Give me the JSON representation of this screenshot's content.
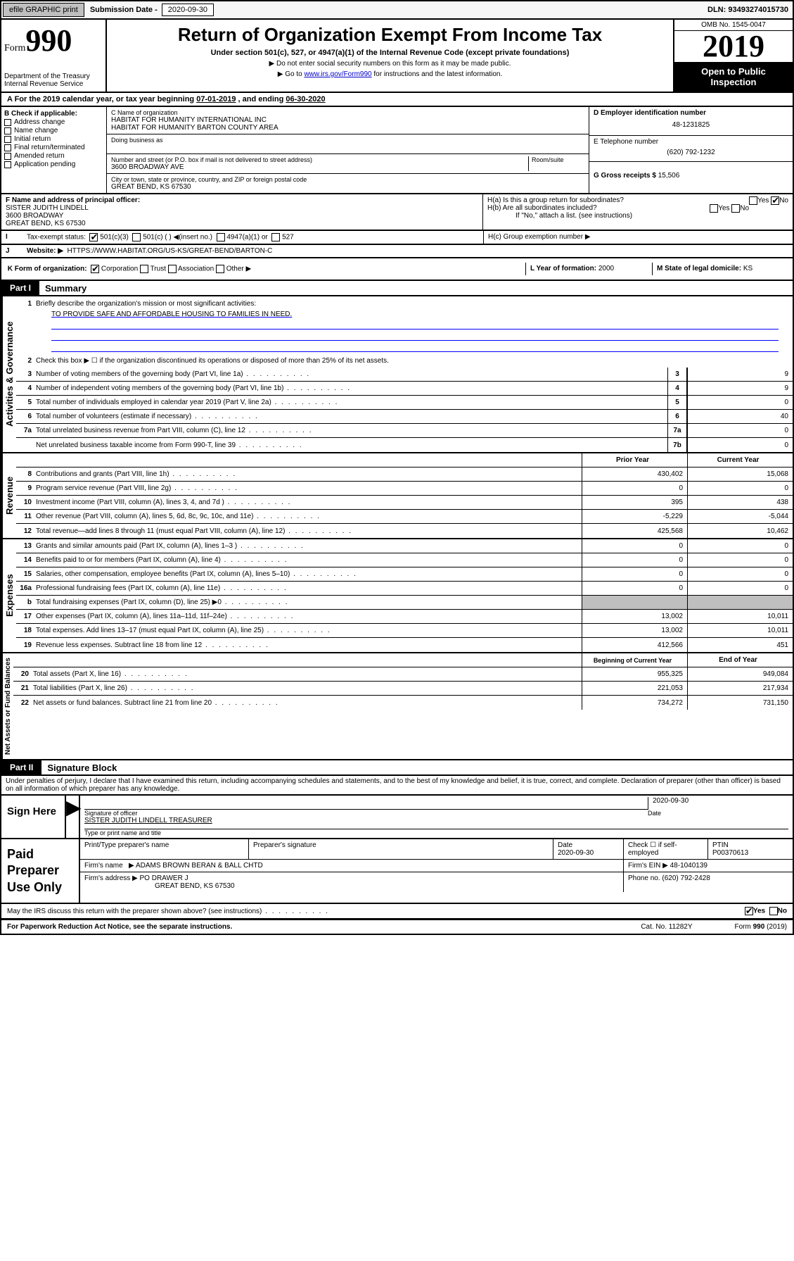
{
  "header": {
    "efile_btn": "efile GRAPHIC print",
    "sub_lbl": "Submission Date - ",
    "sub_date": "2020-09-30",
    "dln": "DLN: 93493274015730"
  },
  "title": {
    "form_prefix": "Form",
    "form_num": "990",
    "main": "Return of Organization Exempt From Income Tax",
    "sub1": "Under section 501(c), 527, or 4947(a)(1) of the Internal Revenue Code (except private foundations)",
    "sub2": "▶ Do not enter social security numbers on this form as it may be made public.",
    "sub3_pre": "▶ Go to ",
    "sub3_link": "www.irs.gov/Form990",
    "sub3_post": " for instructions and the latest information.",
    "dept1": "Department of the Treasury",
    "dept2": "Internal Revenue Service",
    "omb": "OMB No. 1545-0047",
    "year": "2019",
    "open": "Open to Public Inspection"
  },
  "A": {
    "text_pre": "A For the 2019 calendar year, or tax year beginning ",
    "begin": "07-01-2019",
    "mid": " , and ending ",
    "end": "06-30-2020"
  },
  "B": {
    "hdr": "B Check if applicable:",
    "items": [
      "Address change",
      "Name change",
      "Initial return",
      "Final return/terminated",
      "Amended return",
      "Application pending"
    ]
  },
  "C": {
    "name_lbl": "C Name of organization",
    "name1": "HABITAT FOR HUMANITY INTERNATIONAL INC",
    "name2": "HABITAT FOR HUMANITY BARTON COUNTY AREA",
    "dba_lbl": "Doing business as",
    "addr_lbl": "Number and street (or P.O. box if mail is not delivered to street address)",
    "room_lbl": "Room/suite",
    "addr": "3600 BROADWAY AVE",
    "city_lbl": "City or town, state or province, country, and ZIP or foreign postal code",
    "city": "GREAT BEND, KS  67530"
  },
  "D": {
    "lbl": "D Employer identification number",
    "val": "48-1231825"
  },
  "E": {
    "lbl": "E Telephone number",
    "val": "(620) 792-1232"
  },
  "G": {
    "lbl": "G Gross receipts $",
    "val": "15,506"
  },
  "F": {
    "lbl": "F  Name and address of principal officer:",
    "name": "SISTER JUDITH LINDELL",
    "addr1": "3600 BROADWAY",
    "addr2": "GREAT BEND, KS  67530"
  },
  "H": {
    "a": "H(a)  Is this a group return for subordinates?",
    "b": "H(b)  Are all subordinates included?",
    "b2": "If \"No,\" attach a list. (see instructions)",
    "c": "H(c)  Group exemption number ▶",
    "yes": "Yes",
    "no": "No"
  },
  "I": {
    "lbl": "Tax-exempt status:",
    "opts": [
      "501(c)(3)",
      "501(c) (  ) ◀(insert no.)",
      "4947(a)(1) or",
      "527"
    ]
  },
  "J": {
    "lbl": "Website: ▶",
    "val": "HTTPS://WWW.HABITAT.ORG/US-KS/GREAT-BEND/BARTON-C"
  },
  "K": {
    "lbl": "K Form of organization:",
    "opts": [
      "Corporation",
      "Trust",
      "Association",
      "Other ▶"
    ]
  },
  "L": {
    "lbl": "L Year of formation:",
    "val": "2000"
  },
  "M": {
    "lbl": "M State of legal domicile:",
    "val": "KS"
  },
  "part1": {
    "hdr": "Part I",
    "lbl": "Summary"
  },
  "gov": {
    "lbl": "Activities & Governance",
    "l1": "Briefly describe the organization's mission or most significant activities:",
    "l1v": "TO PROVIDE SAFE AND AFFORDABLE HOUSING TO FAMILIES IN NEED.",
    "l2": "Check this box ▶ ☐  if the organization discontinued its operations or disposed of more than 25% of its net assets.",
    "rows": [
      {
        "n": "3",
        "t": "Number of voting members of the governing body (Part VI, line 1a)",
        "b": "3",
        "v": "9"
      },
      {
        "n": "4",
        "t": "Number of independent voting members of the governing body (Part VI, line 1b)",
        "b": "4",
        "v": "9"
      },
      {
        "n": "5",
        "t": "Total number of individuals employed in calendar year 2019 (Part V, line 2a)",
        "b": "5",
        "v": "0"
      },
      {
        "n": "6",
        "t": "Total number of volunteers (estimate if necessary)",
        "b": "6",
        "v": "40"
      },
      {
        "n": "7a",
        "t": "Total unrelated business revenue from Part VIII, column (C), line 12",
        "b": "7a",
        "v": "0"
      },
      {
        "n": "",
        "t": "Net unrelated business taxable income from Form 990-T, line 39",
        "b": "7b",
        "v": "0"
      }
    ]
  },
  "rev": {
    "lbl": "Revenue",
    "h1": "Prior Year",
    "h2": "Current Year",
    "rows": [
      {
        "n": "8",
        "t": "Contributions and grants (Part VIII, line 1h)",
        "p": "430,402",
        "c": "15,068"
      },
      {
        "n": "9",
        "t": "Program service revenue (Part VIII, line 2g)",
        "p": "0",
        "c": "0"
      },
      {
        "n": "10",
        "t": "Investment income (Part VIII, column (A), lines 3, 4, and 7d )",
        "p": "395",
        "c": "438"
      },
      {
        "n": "11",
        "t": "Other revenue (Part VIII, column (A), lines 5, 6d, 8c, 9c, 10c, and 11e)",
        "p": "-5,229",
        "c": "-5,044"
      },
      {
        "n": "12",
        "t": "Total revenue—add lines 8 through 11 (must equal Part VIII, column (A), line 12)",
        "p": "425,568",
        "c": "10,462"
      }
    ]
  },
  "exp": {
    "lbl": "Expenses",
    "rows": [
      {
        "n": "13",
        "t": "Grants and similar amounts paid (Part IX, column (A), lines 1–3 )",
        "p": "0",
        "c": "0"
      },
      {
        "n": "14",
        "t": "Benefits paid to or for members (Part IX, column (A), line 4)",
        "p": "0",
        "c": "0"
      },
      {
        "n": "15",
        "t": "Salaries, other compensation, employee benefits (Part IX, column (A), lines 5–10)",
        "p": "0",
        "c": "0"
      },
      {
        "n": "16a",
        "t": "Professional fundraising fees (Part IX, column (A), line 11e)",
        "p": "0",
        "c": "0"
      },
      {
        "n": "b",
        "t": "Total fundraising expenses (Part IX, column (D), line 25)  ▶0",
        "p": "",
        "c": "",
        "shade": true
      },
      {
        "n": "17",
        "t": "Other expenses (Part IX, column (A), lines 11a–11d, 11f–24e)",
        "p": "13,002",
        "c": "10,011"
      },
      {
        "n": "18",
        "t": "Total expenses. Add lines 13–17 (must equal Part IX, column (A), line 25)",
        "p": "13,002",
        "c": "10,011"
      },
      {
        "n": "19",
        "t": "Revenue less expenses. Subtract line 18 from line 12",
        "p": "412,566",
        "c": "451"
      }
    ]
  },
  "net": {
    "lbl": "Net Assets or Fund Balances",
    "h1": "Beginning of Current Year",
    "h2": "End of Year",
    "rows": [
      {
        "n": "20",
        "t": "Total assets (Part X, line 16)",
        "p": "955,325",
        "c": "949,084"
      },
      {
        "n": "21",
        "t": "Total liabilities (Part X, line 26)",
        "p": "221,053",
        "c": "217,934"
      },
      {
        "n": "22",
        "t": "Net assets or fund balances. Subtract line 21 from line 20",
        "p": "734,272",
        "c": "731,150"
      }
    ]
  },
  "part2": {
    "hdr": "Part II",
    "lbl": "Signature Block"
  },
  "perjury": "Under penalties of perjury, I declare that I have examined this return, including accompanying schedules and statements, and to the best of my knowledge and belief, it is true, correct, and complete. Declaration of preparer (other than officer) is based on all information of which preparer has any knowledge.",
  "sign": {
    "lbl": "Sign Here",
    "date": "2020-09-30",
    "sig_lbl": "Signature of officer",
    "date_lbl": "Date",
    "name": "SISTER JUDITH LINDELL  TREASURER",
    "name_lbl": "Type or print name and title"
  },
  "paid": {
    "lbl": "Paid Preparer Use Only",
    "h": [
      "Print/Type preparer's name",
      "Preparer's signature",
      "Date",
      "",
      "PTIN"
    ],
    "r1": [
      "",
      "",
      "2020-09-30",
      "Check ☐ if self-employed",
      "P00370613"
    ],
    "firm_lbl": "Firm's name",
    "firm": "▶ ADAMS BROWN BERAN & BALL CHTD",
    "ein_lbl": "Firm's EIN ▶",
    "ein": "48-1040139",
    "addr_lbl": "Firm's address",
    "addr1": "▶ PO DRAWER J",
    "addr2": "GREAT BEND, KS  67530",
    "phone_lbl": "Phone no.",
    "phone": "(620) 792-2428"
  },
  "discuss": "May the IRS discuss this return with the preparer shown above? (see instructions)",
  "foot": {
    "l": "For Paperwork Reduction Act Notice, see the separate instructions.",
    "m": "Cat. No. 11282Y",
    "r": "Form 990 (2019)"
  }
}
